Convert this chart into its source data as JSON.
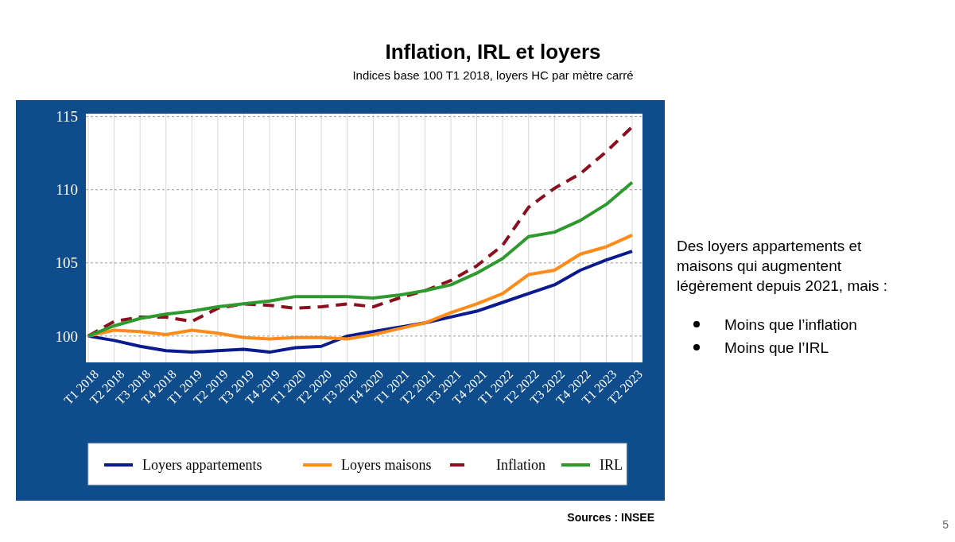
{
  "chart_data": {
    "type": "line",
    "title": "Inflation, IRL et loyers",
    "subtitle": "Indices base 100 T1 2018, loyers HC par mètre carré",
    "categories": [
      "T1 2018",
      "T2 2018",
      "T3 2018",
      "T4 2018",
      "T1 2019",
      "T2 2019",
      "T3 2019",
      "T4 2019",
      "T1 2020",
      "T2 2020",
      "T3 2020",
      "T4 2020",
      "T1 2021",
      "T2 2021",
      "T3 2021",
      "T4 2021",
      "T1 2022",
      "T2 2022",
      "T3 2022",
      "T4 2022",
      "T1 2023",
      "T2 2023"
    ],
    "series": [
      {
        "name": "Loyers appartements",
        "color": "#0b1a8f",
        "line_style": "solid",
        "values": [
          100,
          99.7,
          99.3,
          99.0,
          98.9,
          99.0,
          99.1,
          98.9,
          99.2,
          99.3,
          100.0,
          100.3,
          100.6,
          100.9,
          101.3,
          101.7,
          102.3,
          102.9,
          103.5,
          104.5,
          105.2,
          105.8
        ]
      },
      {
        "name": "Loyers maisons",
        "color": "#ff8c1a",
        "line_style": "solid",
        "values": [
          100,
          100.4,
          100.3,
          100.1,
          100.4,
          100.2,
          99.9,
          99.8,
          99.9,
          99.9,
          99.8,
          100.1,
          100.5,
          100.9,
          101.6,
          102.2,
          102.9,
          104.2,
          104.5,
          105.6,
          106.1,
          106.9
        ]
      },
      {
        "name": "Inflation",
        "color": "#8b0f1e",
        "line_style": "dashed",
        "values": [
          100,
          101.0,
          101.3,
          101.3,
          101.0,
          101.9,
          102.2,
          102.1,
          101.9,
          102.0,
          102.2,
          102.0,
          102.6,
          103.1,
          103.8,
          104.8,
          106.2,
          108.8,
          110.1,
          111.1,
          112.6,
          114.3
        ]
      },
      {
        "name": "IRL",
        "color": "#2e9a2e",
        "line_style": "solid",
        "values": [
          100,
          100.7,
          101.2,
          101.5,
          101.7,
          102.0,
          102.2,
          102.4,
          102.7,
          102.7,
          102.7,
          102.6,
          102.8,
          103.1,
          103.5,
          104.3,
          105.3,
          106.8,
          107.1,
          107.9,
          109.0,
          110.5
        ]
      }
    ],
    "ylim": [
      98.2,
      115.2
    ],
    "yticks": [
      100,
      105,
      110,
      115
    ],
    "grid": true,
    "legend": "bottom",
    "marker": "none",
    "annotations": [
      "Des loyers appartements et maisons qui augmentent légèrement depuis 2021, mais :",
      "Moins que l’inflation",
      "Moins que l’IRL",
      "Sources : INSEE",
      "5"
    ]
  }
}
